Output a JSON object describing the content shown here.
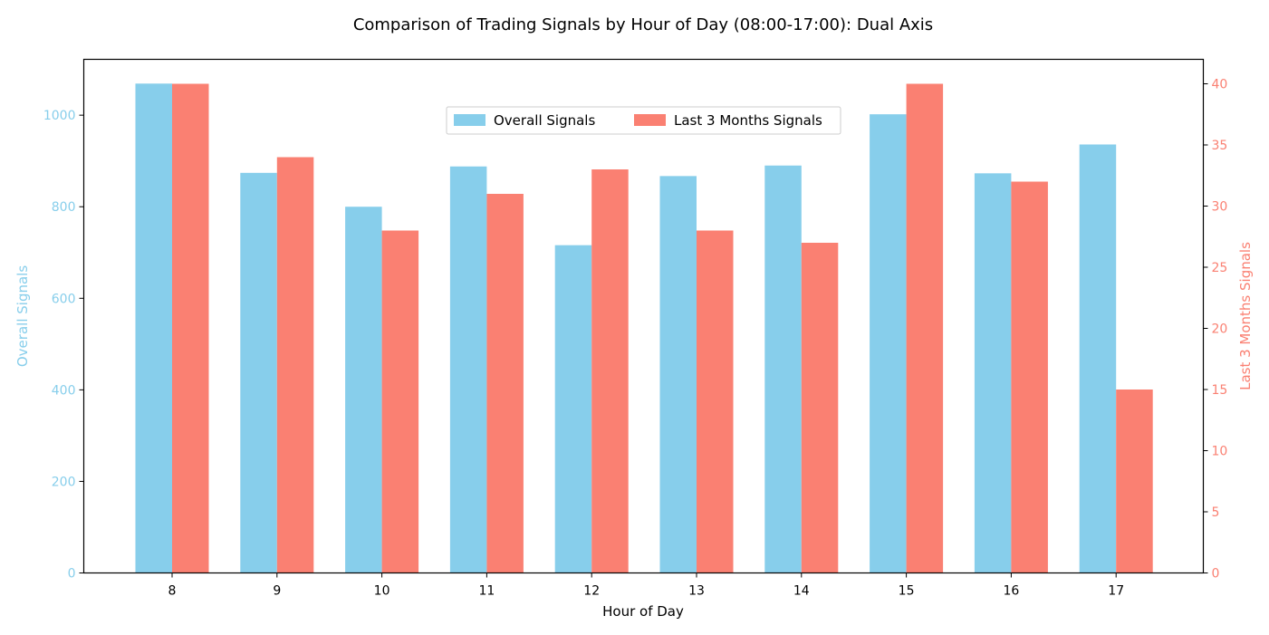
{
  "chart_data": {
    "type": "bar",
    "title": "Comparison of Trading Signals by Hour of Day (08:00-17:00): Dual Axis",
    "xlabel": "Hour of Day",
    "categories": [
      "8",
      "9",
      "10",
      "11",
      "12",
      "13",
      "14",
      "15",
      "16",
      "17"
    ],
    "series": [
      {
        "name": "Overall Signals",
        "axis": "left",
        "color": "#87CEEB",
        "values": [
          1069,
          874,
          800,
          888,
          716,
          867,
          890,
          1002,
          873,
          936
        ]
      },
      {
        "name": "Last 3 Months Signals",
        "axis": "right",
        "color": "#FA8072",
        "values": [
          40,
          34,
          28,
          31,
          33,
          28,
          27,
          40,
          32,
          15
        ]
      }
    ],
    "y_left": {
      "label": "Overall Signals",
      "range": [
        0,
        1122
      ],
      "ticks": [
        0,
        200,
        400,
        600,
        800,
        1000
      ],
      "color": "#87CEEB"
    },
    "y_right": {
      "label": "Last 3 Months Signals",
      "range": [
        0,
        42
      ],
      "ticks": [
        0,
        5,
        10,
        15,
        20,
        25,
        30,
        35,
        40
      ],
      "color": "#FA8072"
    },
    "grid": false,
    "legend": "upper-center"
  }
}
